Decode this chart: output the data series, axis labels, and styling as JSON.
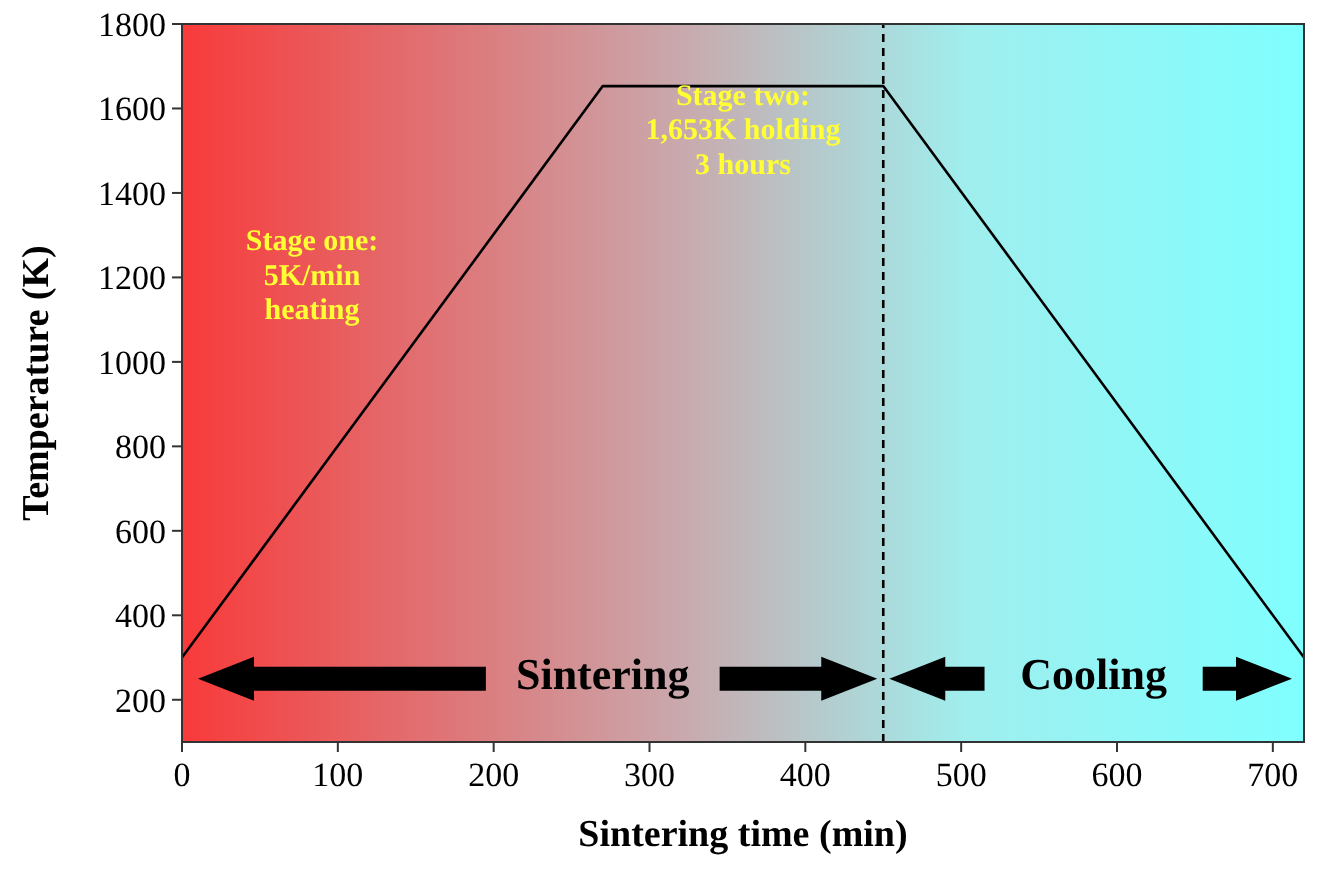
{
  "chart_data": {
    "type": "line",
    "xlabel": "Sintering time (min)",
    "ylabel": "Temperature (K)",
    "x": [
      0,
      270,
      450,
      720
    ],
    "series": [
      {
        "color": "#000000",
        "values": [
          300,
          1653,
          1653,
          300
        ]
      }
    ],
    "xlim": [
      0,
      720
    ],
    "ylim": [
      100,
      1800
    ],
    "xticks": [
      0,
      100,
      200,
      300,
      400,
      500,
      600,
      700
    ],
    "yticks": [
      200,
      400,
      600,
      800,
      1000,
      1200,
      1400,
      1600,
      1800
    ],
    "ref_lines": [
      {
        "axis": "x",
        "value": 450,
        "color": "#000000",
        "line_style": "dashed"
      }
    ],
    "annotations": [
      "Stage one:\n5K/min\nheating",
      "Stage two:\n1,653K holding\n3 hours",
      "Sintering",
      "Cooling"
    ],
    "grid": false,
    "marker": "none",
    "line_style": "solid"
  }
}
